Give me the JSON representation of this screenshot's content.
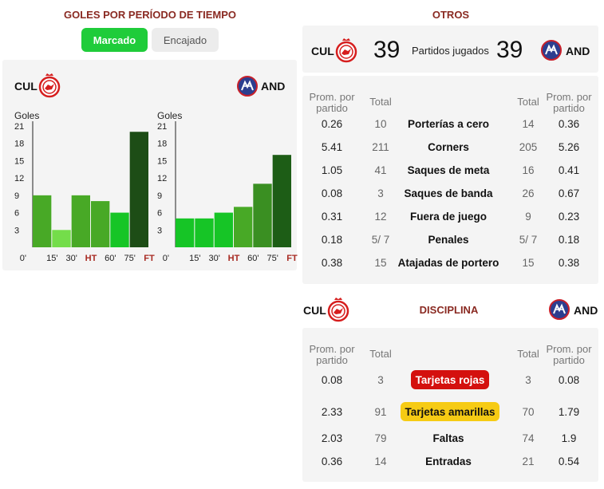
{
  "left": {
    "title": "GOLES POR PERÍODO DE TIEMPO",
    "tabs": {
      "scored": "Marcado",
      "conceded": "Encajado"
    },
    "home": "CUL",
    "away": "AND"
  },
  "chart_data": [
    {
      "type": "bar",
      "team": "CUL",
      "ylabel": "Goles",
      "yticks": [
        3,
        6,
        9,
        12,
        15,
        18,
        21
      ],
      "ylim": [
        0,
        21
      ],
      "xticks": [
        "0'",
        "15'",
        "30'",
        "HT",
        "60'",
        "75'",
        "FT"
      ],
      "categories": [
        "0-15",
        "15-30",
        "30-45",
        "45-60",
        "60-75",
        "75-90"
      ],
      "values": [
        9,
        3,
        9,
        8,
        6,
        20
      ],
      "colors": [
        "#48a926",
        "#74dd4a",
        "#48a926",
        "#48a926",
        "#16c526",
        "#1d4d16"
      ]
    },
    {
      "type": "bar",
      "team": "AND",
      "ylabel": "Goles",
      "yticks": [
        3,
        6,
        9,
        12,
        15,
        18,
        21
      ],
      "ylim": [
        0,
        21
      ],
      "xticks": [
        "0'",
        "15'",
        "30'",
        "HT",
        "60'",
        "75'",
        "FT"
      ],
      "categories": [
        "0-15",
        "15-30",
        "30-45",
        "45-60",
        "60-75",
        "75-90"
      ],
      "values": [
        5,
        5,
        6,
        7,
        11,
        16
      ],
      "colors": [
        "#16c526",
        "#16c526",
        "#16c526",
        "#48a926",
        "#3a8f22",
        "#1d5d16"
      ]
    }
  ],
  "otros": {
    "title": "OTROS",
    "home": "CUL",
    "away": "AND",
    "home_played": "39",
    "away_played": "39",
    "played_label": "Partidos jugados",
    "hdr_avg": "Prom. por partido",
    "hdr_total": "Total",
    "rows": [
      {
        "label": "Porterías a cero",
        "h_avg": "0.26",
        "h_tot": "10",
        "a_tot": "14",
        "a_avg": "0.36"
      },
      {
        "label": "Corners",
        "h_avg": "5.41",
        "h_tot": "211",
        "a_tot": "205",
        "a_avg": "5.26"
      },
      {
        "label": "Saques de meta",
        "h_avg": "1.05",
        "h_tot": "41",
        "a_tot": "16",
        "a_avg": "0.41"
      },
      {
        "label": "Saques de banda",
        "h_avg": "0.08",
        "h_tot": "3",
        "a_tot": "26",
        "a_avg": "0.67"
      },
      {
        "label": "Fuera de juego",
        "h_avg": "0.31",
        "h_tot": "12",
        "a_tot": "9",
        "a_avg": "0.23"
      },
      {
        "label": "Penales",
        "h_avg": "0.18",
        "h_tot": "5/ 7",
        "a_tot": "5/ 7",
        "a_avg": "0.18"
      },
      {
        "label": "Atajadas de portero",
        "h_avg": "0.38",
        "h_tot": "15",
        "a_tot": "15",
        "a_avg": "0.38"
      }
    ]
  },
  "disciplina": {
    "title": "DISCIPLINA",
    "home": "CUL",
    "away": "AND",
    "hdr_avg": "Prom. por partido",
    "hdr_total": "Total",
    "rows": [
      {
        "label": "Tarjetas rojas",
        "h_avg": "0.08",
        "h_tot": "3",
        "a_tot": "3",
        "a_avg": "0.08"
      },
      {
        "label": "Tarjetas amarillas",
        "h_avg": "2.33",
        "h_tot": "91",
        "a_tot": "70",
        "a_avg": "1.79"
      },
      {
        "label": "Faltas",
        "h_avg": "2.03",
        "h_tot": "79",
        "a_tot": "74",
        "a_avg": "1.9"
      },
      {
        "label": "Entradas",
        "h_avg": "0.36",
        "h_tot": "14",
        "a_tot": "21",
        "a_avg": "0.54"
      }
    ]
  },
  "colors": {
    "accent": "#8a2a22",
    "green": "#1fcc3a",
    "red_card": "#d4100e",
    "yellow_card": "#f6cb14"
  }
}
